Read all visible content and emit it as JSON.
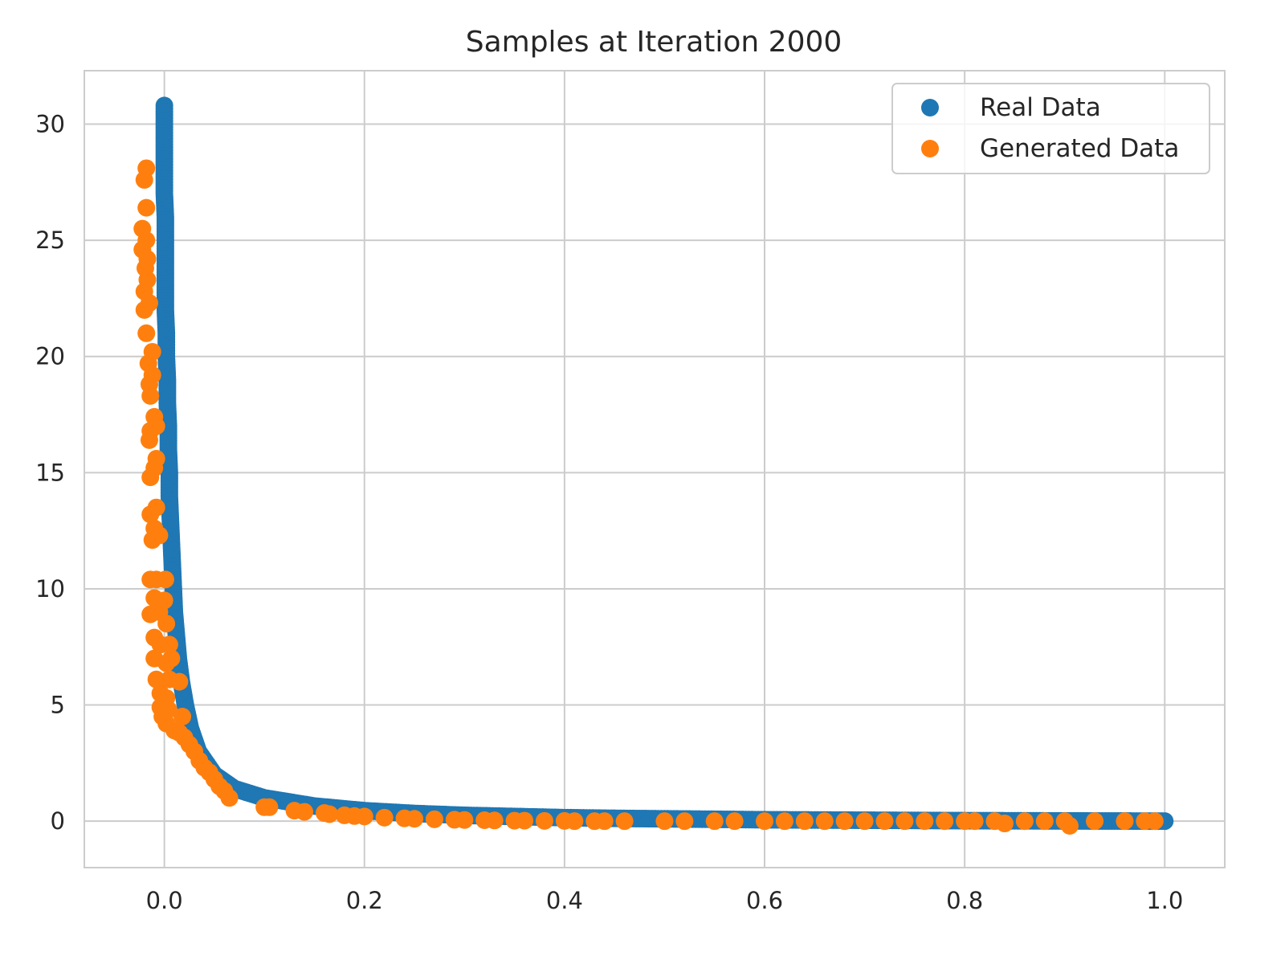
{
  "chart_data": {
    "type": "scatter",
    "title": "Samples at Iteration 2000",
    "xlabel": "",
    "ylabel": "",
    "xlim": [
      -0.08,
      1.06
    ],
    "ylim": [
      -2,
      32.3
    ],
    "x_ticks": [
      0.0,
      0.2,
      0.4,
      0.6,
      0.8,
      1.0
    ],
    "x_tick_labels": [
      "0.0",
      "0.2",
      "0.4",
      "0.6",
      "0.8",
      "1.0"
    ],
    "y_ticks": [
      0,
      5,
      10,
      15,
      20,
      25,
      30
    ],
    "y_tick_labels": [
      "0",
      "5",
      "10",
      "15",
      "20",
      "25",
      "30"
    ],
    "grid": true,
    "legend_position": "top-right",
    "series": [
      {
        "name": "Real Data",
        "color": "#1f77b4",
        "points": [
          [
            0.0,
            30.8
          ],
          [
            0.0,
            30.0
          ],
          [
            0.0,
            29.0
          ],
          [
            0.0,
            28.0
          ],
          [
            0.0,
            27.0
          ],
          [
            0.001,
            26.0
          ],
          [
            0.001,
            25.0
          ],
          [
            0.001,
            24.0
          ],
          [
            0.001,
            23.0
          ],
          [
            0.001,
            22.0
          ],
          [
            0.002,
            21.0
          ],
          [
            0.002,
            20.0
          ],
          [
            0.003,
            19.0
          ],
          [
            0.003,
            18.0
          ],
          [
            0.004,
            17.0
          ],
          [
            0.004,
            16.0
          ],
          [
            0.005,
            15.0
          ],
          [
            0.005,
            14.0
          ],
          [
            0.006,
            13.0
          ],
          [
            0.007,
            12.0
          ],
          [
            0.008,
            11.0
          ],
          [
            0.009,
            10.0
          ],
          [
            0.01,
            9.0
          ],
          [
            0.012,
            8.0
          ],
          [
            0.014,
            7.0
          ],
          [
            0.017,
            6.0
          ],
          [
            0.021,
            5.0
          ],
          [
            0.026,
            4.0
          ],
          [
            0.034,
            3.0
          ],
          [
            0.05,
            2.0
          ],
          [
            0.07,
            1.4
          ],
          [
            0.1,
            1.0
          ],
          [
            0.15,
            0.65
          ],
          [
            0.2,
            0.45
          ],
          [
            0.25,
            0.33
          ],
          [
            0.3,
            0.25
          ],
          [
            0.35,
            0.2
          ],
          [
            0.4,
            0.15
          ],
          [
            0.45,
            0.12
          ],
          [
            0.5,
            0.1
          ],
          [
            0.55,
            0.08
          ],
          [
            0.6,
            0.06
          ],
          [
            0.65,
            0.05
          ],
          [
            0.7,
            0.04
          ],
          [
            0.75,
            0.03
          ],
          [
            0.8,
            0.02
          ],
          [
            0.85,
            0.015
          ],
          [
            0.9,
            0.01
          ],
          [
            0.95,
            0.005
          ],
          [
            1.0,
            0.0
          ]
        ]
      },
      {
        "name": "Generated Data",
        "color": "#ff7f0e",
        "points": [
          [
            -0.018,
            28.1
          ],
          [
            -0.02,
            27.6
          ],
          [
            -0.018,
            26.4
          ],
          [
            -0.022,
            25.5
          ],
          [
            -0.018,
            25.0
          ],
          [
            -0.022,
            24.6
          ],
          [
            -0.017,
            24.2
          ],
          [
            -0.019,
            23.8
          ],
          [
            -0.017,
            23.3
          ],
          [
            -0.02,
            22.8
          ],
          [
            -0.015,
            22.3
          ],
          [
            -0.02,
            22.0
          ],
          [
            -0.018,
            21.0
          ],
          [
            -0.012,
            20.2
          ],
          [
            -0.016,
            19.7
          ],
          [
            -0.012,
            19.2
          ],
          [
            -0.015,
            18.8
          ],
          [
            -0.014,
            18.3
          ],
          [
            -0.01,
            17.4
          ],
          [
            -0.008,
            17.0
          ],
          [
            -0.014,
            16.8
          ],
          [
            -0.015,
            16.4
          ],
          [
            -0.008,
            15.6
          ],
          [
            -0.01,
            15.2
          ],
          [
            -0.014,
            14.8
          ],
          [
            -0.008,
            13.5
          ],
          [
            -0.014,
            13.2
          ],
          [
            -0.01,
            12.6
          ],
          [
            -0.012,
            12.1
          ],
          [
            -0.005,
            12.3
          ],
          [
            -0.014,
            10.4
          ],
          [
            -0.008,
            10.4
          ],
          [
            0.001,
            10.4
          ],
          [
            -0.01,
            9.6
          ],
          [
            0.0,
            9.5
          ],
          [
            -0.014,
            8.9
          ],
          [
            -0.005,
            9.0
          ],
          [
            0.002,
            8.5
          ],
          [
            -0.01,
            7.9
          ],
          [
            -0.004,
            7.6
          ],
          [
            0.005,
            7.6
          ],
          [
            -0.01,
            7.0
          ],
          [
            0.002,
            6.8
          ],
          [
            0.007,
            7.0
          ],
          [
            -0.008,
            6.1
          ],
          [
            0.005,
            6.1
          ],
          [
            0.015,
            6.0
          ],
          [
            -0.004,
            5.5
          ],
          [
            0.002,
            5.3
          ],
          [
            -0.004,
            4.9
          ],
          [
            0.004,
            4.8
          ],
          [
            -0.002,
            4.5
          ],
          [
            0.018,
            4.5
          ],
          [
            0.002,
            4.2
          ],
          [
            0.01,
            3.9
          ],
          [
            0.015,
            3.8
          ],
          [
            0.02,
            3.6
          ],
          [
            0.025,
            3.3
          ],
          [
            0.03,
            3.0
          ],
          [
            0.035,
            2.6
          ],
          [
            0.04,
            2.3
          ],
          [
            0.045,
            2.1
          ],
          [
            0.05,
            1.8
          ],
          [
            0.055,
            1.5
          ],
          [
            0.06,
            1.3
          ],
          [
            0.065,
            1.0
          ],
          [
            0.1,
            0.6
          ],
          [
            0.105,
            0.6
          ],
          [
            0.13,
            0.45
          ],
          [
            0.14,
            0.4
          ],
          [
            0.16,
            0.35
          ],
          [
            0.165,
            0.3
          ],
          [
            0.18,
            0.25
          ],
          [
            0.19,
            0.22
          ],
          [
            0.2,
            0.2
          ],
          [
            0.22,
            0.15
          ],
          [
            0.24,
            0.12
          ],
          [
            0.25,
            0.1
          ],
          [
            0.27,
            0.08
          ],
          [
            0.29,
            0.06
          ],
          [
            0.3,
            0.05
          ],
          [
            0.32,
            0.04
          ],
          [
            0.33,
            0.03
          ],
          [
            0.35,
            0.02
          ],
          [
            0.36,
            0.02
          ],
          [
            0.38,
            0.01
          ],
          [
            0.4,
            0.01
          ],
          [
            0.41,
            0.0
          ],
          [
            0.43,
            0.0
          ],
          [
            0.44,
            0.0
          ],
          [
            0.46,
            0.0
          ],
          [
            0.5,
            0.0
          ],
          [
            0.52,
            0.0
          ],
          [
            0.55,
            0.0
          ],
          [
            0.57,
            0.0
          ],
          [
            0.6,
            0.0
          ],
          [
            0.62,
            0.0
          ],
          [
            0.64,
            0.0
          ],
          [
            0.66,
            0.0
          ],
          [
            0.68,
            0.0
          ],
          [
            0.7,
            0.0
          ],
          [
            0.72,
            0.0
          ],
          [
            0.74,
            0.0
          ],
          [
            0.76,
            0.0
          ],
          [
            0.78,
            0.0
          ],
          [
            0.8,
            0.0
          ],
          [
            0.81,
            0.0
          ],
          [
            0.83,
            0.0
          ],
          [
            0.84,
            -0.1
          ],
          [
            0.86,
            0.0
          ],
          [
            0.88,
            0.0
          ],
          [
            0.9,
            0.0
          ],
          [
            0.905,
            -0.2
          ],
          [
            0.93,
            0.0
          ],
          [
            0.96,
            0.0
          ],
          [
            0.98,
            0.0
          ],
          [
            0.99,
            0.0
          ]
        ]
      }
    ]
  }
}
